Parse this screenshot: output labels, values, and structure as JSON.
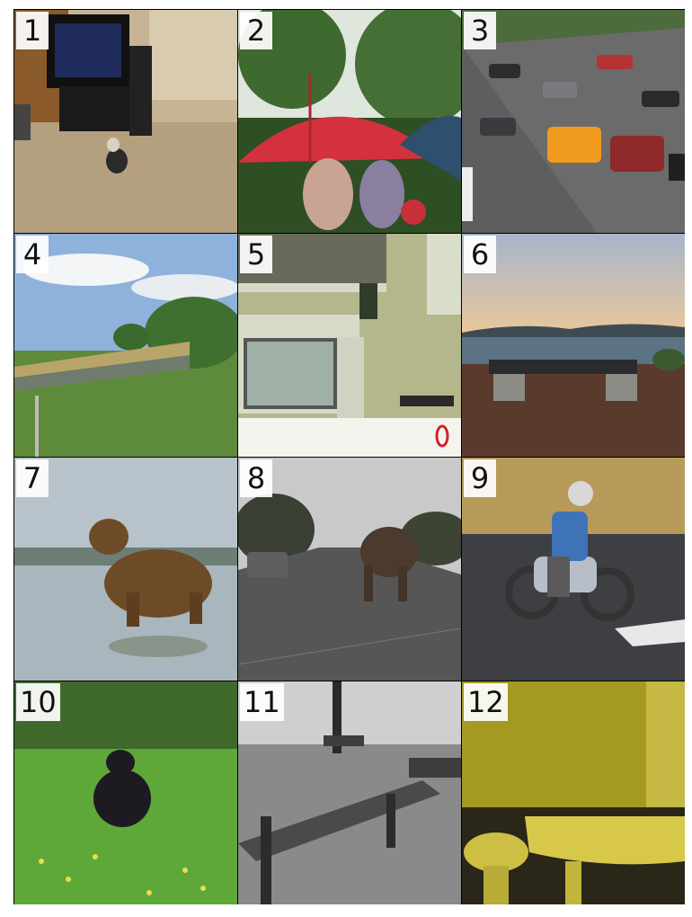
{
  "panels": [
    {
      "label": "1",
      "scene": "small dog sitting on carpet in front of crt television",
      "colors": {
        "wall": "#c8b79a",
        "floor": "#b9a688",
        "tv": "#1a1a1a"
      }
    },
    {
      "label": "2",
      "scene": "people under red umbrella with trees",
      "colors": {
        "umbrella": "#d8323e",
        "trees": "#3e6b2f",
        "sky": "#e8eee6"
      }
    },
    {
      "label": "3",
      "scene": "parking lot full of cars",
      "colors": {
        "ground": "#5f5f60",
        "orange-car": "#f09a1e",
        "foliage": "#4b6a3c"
      }
    },
    {
      "label": "4",
      "scene": "train passing through green field",
      "colors": {
        "sky": "#8fb2dd",
        "train": "#b7a66b",
        "grass": "#5f8a3c"
      }
    },
    {
      "label": "5",
      "scene": "old computer monitor on desk with shelves",
      "colors": {
        "wall": "#b4b68d",
        "monitor": "#ced2c0",
        "screen": "#a7b5ac"
      }
    },
    {
      "label": "6",
      "scene": "bench by lake at dusk",
      "colors": {
        "sky": "#9fb1c7",
        "water": "#5b7382",
        "ground": "#5a3a2d"
      }
    },
    {
      "label": "7",
      "scene": "brown bear standing in shallow water",
      "colors": {
        "water": "#b9c4cb",
        "bear": "#6e4b27"
      }
    },
    {
      "label": "8",
      "scene": "elephant walking down road",
      "colors": {
        "sky": "#c8c8c8",
        "road": "#555555",
        "elephant": "#4b3a2d"
      }
    },
    {
      "label": "9",
      "scene": "motorcycle rider on asphalt",
      "colors": {
        "grass": "#b79a5a",
        "road": "#3d3f43",
        "jacket": "#3e73b8"
      }
    },
    {
      "label": "10",
      "scene": "black bear sitting in green grass with flowers",
      "colors": {
        "grass": "#5ea83a",
        "bear": "#1d1a22",
        "flowers": "#e6e04a"
      }
    },
    {
      "label": "11",
      "scene": "black and white wooden bench in park",
      "colors": {
        "ground": "#8a8a8a",
        "bench": "#333333"
      }
    },
    {
      "label": "12",
      "scene": "yellow bathroom with sink and toilet",
      "colors": {
        "wall": "#a59a22",
        "sink": "#d8c84a",
        "floor": "#2a2618"
      }
    }
  ]
}
